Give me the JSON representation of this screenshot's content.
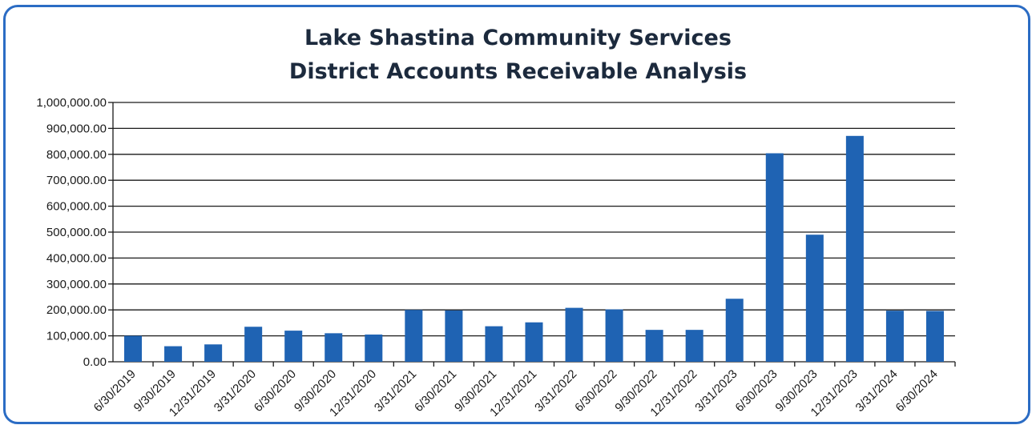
{
  "chart_data": {
    "type": "bar",
    "title_line1": "Lake Shastina Community Services",
    "title_line2": "District Accounts Receivable Analysis",
    "xlabel": "",
    "ylabel": "",
    "ylim": [
      0,
      1000000
    ],
    "grid": true,
    "legend": "none",
    "bar_color": "#1f63b3",
    "y_ticks": [
      "0.00",
      "100,000.00",
      "200,000.00",
      "300,000.00",
      "400,000.00",
      "500,000.00",
      "600,000.00",
      "700,000.00",
      "800,000.00",
      "900,000.00",
      "1,000,000.00"
    ],
    "categories": [
      "6/30/2019",
      "9/30/2019",
      "12/31/2019",
      "3/31/2020",
      "6/30/2020",
      "9/30/2020",
      "12/31/2020",
      "3/31/2021",
      "6/30/2021",
      "9/30/2021",
      "12/31/2021",
      "3/31/2022",
      "6/30/2022",
      "9/30/2022",
      "12/31/2022",
      "3/31/2023",
      "6/30/2023",
      "9/30/2023",
      "12/31/2023",
      "3/31/2024",
      "6/30/2024"
    ],
    "values": [
      100000,
      60000,
      67000,
      135000,
      120000,
      110000,
      105000,
      200000,
      198000,
      137000,
      152000,
      208000,
      202000,
      123000,
      123000,
      243000,
      804000,
      490000,
      871000,
      197000,
      196000
    ]
  }
}
